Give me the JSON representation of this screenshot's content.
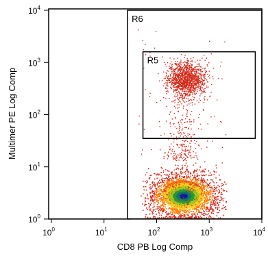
{
  "chart_data": {
    "type": "scatter",
    "plot_style": "density dot plot",
    "xlabel": "CD8 PB Log Comp",
    "ylabel": "Multimer PE Log Comp",
    "x_scale": "log",
    "y_scale": "log",
    "xlim": [
      1,
      10000
    ],
    "ylim": [
      1,
      10000
    ],
    "x_ticks": [
      {
        "base": "10",
        "exp": "0",
        "value": 1
      },
      {
        "base": "10",
        "exp": "1",
        "value": 10
      },
      {
        "base": "10",
        "exp": "2",
        "value": 100
      },
      {
        "base": "10",
        "exp": "3",
        "value": 1000
      },
      {
        "base": "10",
        "exp": "4",
        "value": 10000
      }
    ],
    "y_ticks": [
      {
        "base": "10",
        "exp": "0",
        "value": 1
      },
      {
        "base": "10",
        "exp": "1",
        "value": 10
      },
      {
        "base": "10",
        "exp": "2",
        "value": 100
      },
      {
        "base": "10",
        "exp": "3",
        "value": 1000
      },
      {
        "base": "10",
        "exp": "4",
        "value": 10000
      }
    ],
    "gates": [
      {
        "name": "R6",
        "x_range": [
          28,
          10000
        ],
        "y_range": [
          1,
          10000
        ]
      },
      {
        "name": "R5",
        "x_range": [
          55,
          7500
        ],
        "y_range": [
          35,
          1600
        ]
      }
    ],
    "populations": [
      {
        "center_x": 320,
        "center_y": 2.8,
        "note": "dense multimer-negative CD8+ cluster",
        "spread_x_log": 0.3,
        "spread_y_log": 0.16
      },
      {
        "center_x": 360,
        "center_y": 480,
        "note": "multimer-positive cluster",
        "spread_x_log": 0.18,
        "spread_y_log": 0.16
      }
    ],
    "density_colors": [
      "#d42a1a",
      "#ff7a00",
      "#ffd21a",
      "#9ad020",
      "#1aa03a",
      "#007a6e",
      "#0a1a9e"
    ]
  }
}
